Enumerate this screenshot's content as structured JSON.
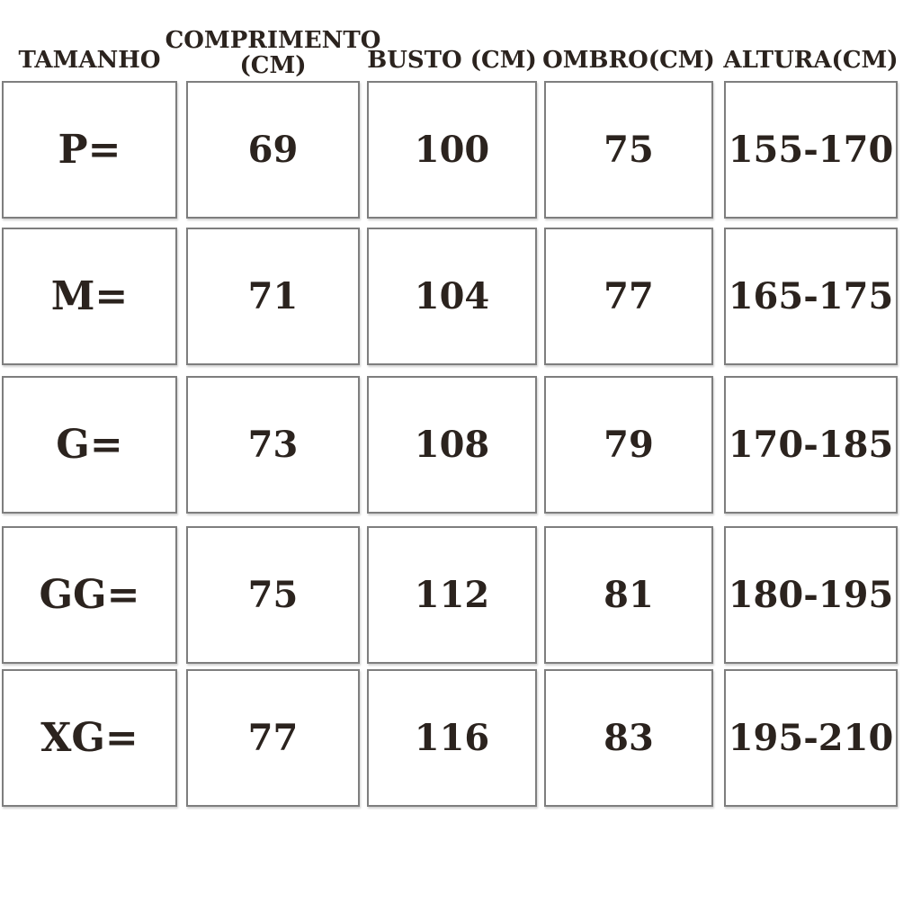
{
  "colors": {
    "background": "#ffffff",
    "text": "#2b231e",
    "cell_border": "#7e7e7e"
  },
  "table": {
    "headers": [
      {
        "line1": "TAMANHO"
      },
      {
        "line1": "COMPRIMENTO",
        "line2": "(CM)"
      },
      {
        "line1": "BUSTO (CM)"
      },
      {
        "line1": "OMBRO(CM)"
      },
      {
        "line1": "ALTURA(CM)"
      }
    ],
    "rows": [
      {
        "cells": [
          "P=",
          "69",
          "100",
          "75",
          "155-170"
        ]
      },
      {
        "cells": [
          "M=",
          "71",
          "104",
          "77",
          "165-175"
        ]
      },
      {
        "cells": [
          "G=",
          "73",
          "108",
          "79",
          "170-185"
        ]
      },
      {
        "cells": [
          "GG=",
          "75",
          "112",
          "81",
          "180-195"
        ]
      },
      {
        "cells": [
          "XG=",
          "77",
          "116",
          "83",
          "195-210"
        ]
      }
    ]
  },
  "chart_data": {
    "type": "table",
    "columns": [
      "TAMANHO",
      "COMPRIMENTO (CM)",
      "BUSTO (CM)",
      "OMBRO(CM)",
      "ALTURA(CM)"
    ],
    "rows": [
      [
        "P=",
        69,
        100,
        75,
        "155-170"
      ],
      [
        "M=",
        71,
        104,
        77,
        "165-175"
      ],
      [
        "G=",
        73,
        108,
        79,
        "170-185"
      ],
      [
        "GG=",
        75,
        112,
        81,
        "180-195"
      ],
      [
        "XG=",
        77,
        116,
        83,
        "195-210"
      ]
    ]
  }
}
